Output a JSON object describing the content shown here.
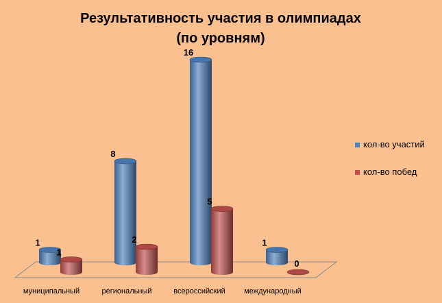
{
  "chart_data": {
    "type": "bar",
    "title": "Результативность участия в олимпиадах (по уровням)",
    "title_lines": [
      "Результативность участия в олимпиадах",
      "(по уровням)"
    ],
    "categories": [
      "муниципальный",
      "региональный",
      "всероссийский",
      "международный"
    ],
    "series": [
      {
        "name": "кол-во участий",
        "values": [
          1,
          8,
          16,
          1
        ],
        "color": "#4F81BD"
      },
      {
        "name": "кол-во побед",
        "values": [
          1,
          2,
          5,
          0
        ],
        "color": "#C0504D"
      }
    ],
    "ylim": [
      0,
      16
    ],
    "grid": false,
    "legend_position": "right",
    "style": "3d-cylinder"
  }
}
